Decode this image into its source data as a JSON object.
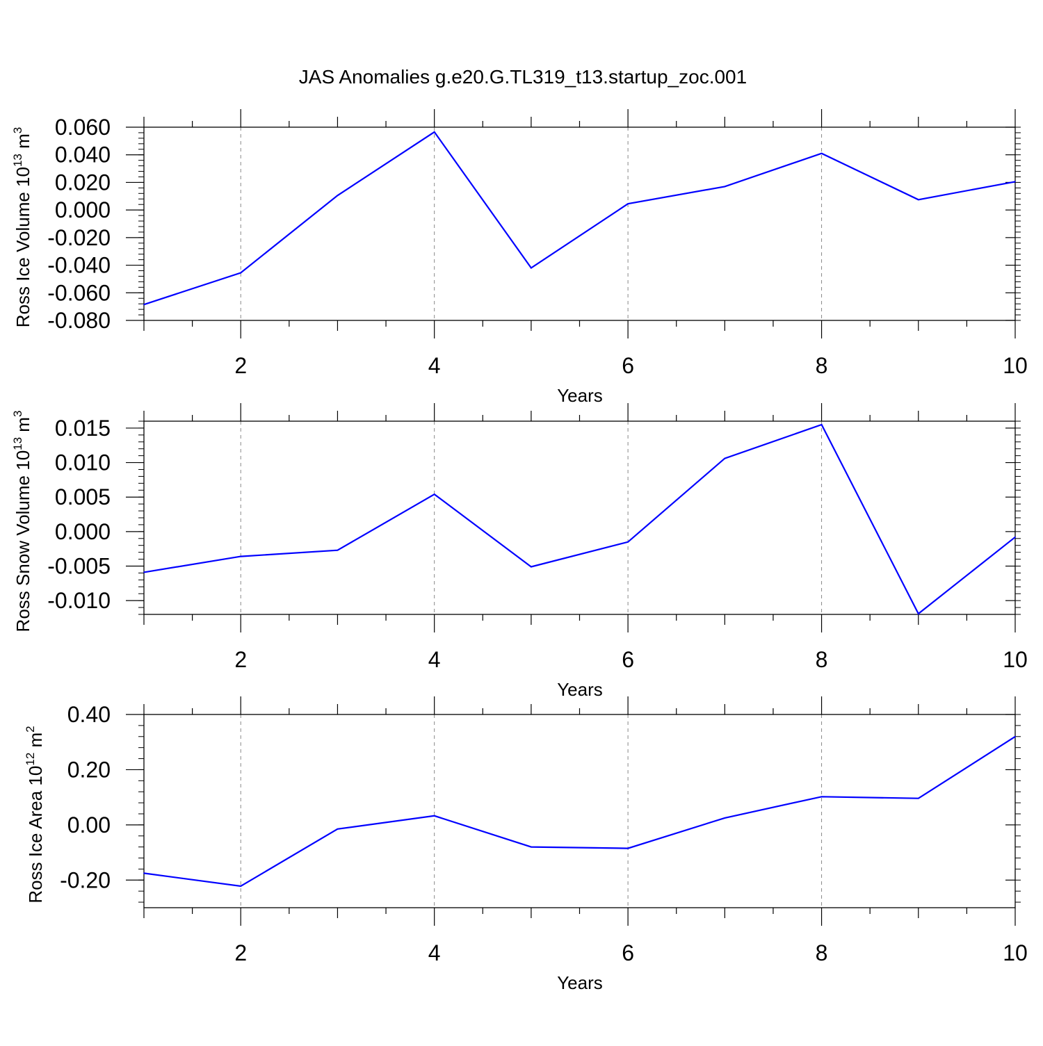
{
  "title": "JAS Anomalies g.e20.G.TL319_t13.startup_zoc.001",
  "colors": {
    "line": "#0000ff",
    "grid": "#888888",
    "axis": "#000000"
  },
  "chart_data": [
    {
      "type": "line",
      "xlabel": "Years",
      "ylabel": {
        "prefix": "Ross Ice Volume 10",
        "exponent": "13",
        "unit": " m",
        "unit_exponent": "3"
      },
      "xlim": [
        1,
        10
      ],
      "ylim": [
        -0.08,
        0.06
      ],
      "x_ticks": [
        2,
        4,
        6,
        8,
        10
      ],
      "x_tick_labels": [
        "2",
        "4",
        "6",
        "8",
        "10"
      ],
      "y_ticks": [
        -0.08,
        -0.06,
        -0.04,
        -0.02,
        0.0,
        0.02,
        0.04,
        0.06
      ],
      "y_tick_labels": [
        "-0.080",
        "-0.060",
        "-0.040",
        "-0.020",
        "0.000",
        "0.020",
        "0.040",
        "0.060"
      ],
      "grid": "x-dashed",
      "x": [
        1,
        2,
        3,
        4,
        5,
        6,
        7,
        8,
        9,
        10
      ],
      "y": [
        -0.0685,
        -0.0455,
        0.0105,
        0.0565,
        -0.042,
        0.0045,
        0.017,
        0.041,
        0.0075,
        0.0205
      ]
    },
    {
      "type": "line",
      "xlabel": "Years",
      "ylabel": {
        "prefix": "Ross Snow Volume 10",
        "exponent": "13",
        "unit": " m",
        "unit_exponent": "3"
      },
      "xlim": [
        1,
        10
      ],
      "ylim": [
        -0.012,
        0.016
      ],
      "x_ticks": [
        2,
        4,
        6,
        8,
        10
      ],
      "x_tick_labels": [
        "2",
        "4",
        "6",
        "8",
        "10"
      ],
      "y_ticks": [
        -0.01,
        -0.005,
        0.0,
        0.005,
        0.01,
        0.015
      ],
      "y_tick_labels": [
        "-0.010",
        "-0.005",
        "0.000",
        "0.005",
        "0.010",
        "0.015"
      ],
      "grid": "x-dashed",
      "x": [
        1,
        2,
        3,
        4,
        5,
        6,
        7,
        8,
        9,
        10
      ],
      "y": [
        -0.0059,
        -0.0036,
        -0.0027,
        0.0054,
        -0.0051,
        -0.0015,
        0.0106,
        0.0155,
        -0.0119,
        -0.0008
      ]
    },
    {
      "type": "line",
      "xlabel": "Years",
      "ylabel": {
        "prefix": "Ross Ice Area 10",
        "exponent": "12",
        "unit": " m",
        "unit_exponent": "2"
      },
      "xlim": [
        1,
        10
      ],
      "ylim": [
        -0.3,
        0.4
      ],
      "x_ticks": [
        2,
        4,
        6,
        8,
        10
      ],
      "x_tick_labels": [
        "2",
        "4",
        "6",
        "8",
        "10"
      ],
      "y_ticks": [
        -0.2,
        0.0,
        0.2,
        0.4
      ],
      "y_tick_labels": [
        "-0.20",
        "0.00",
        "0.20",
        "0.40"
      ],
      "grid": "x-dashed",
      "x": [
        1,
        2,
        3,
        4,
        5,
        6,
        7,
        8,
        9,
        10
      ],
      "y": [
        -0.175,
        -0.222,
        -0.015,
        0.033,
        -0.08,
        -0.085,
        0.025,
        0.102,
        0.096,
        0.32
      ]
    }
  ]
}
